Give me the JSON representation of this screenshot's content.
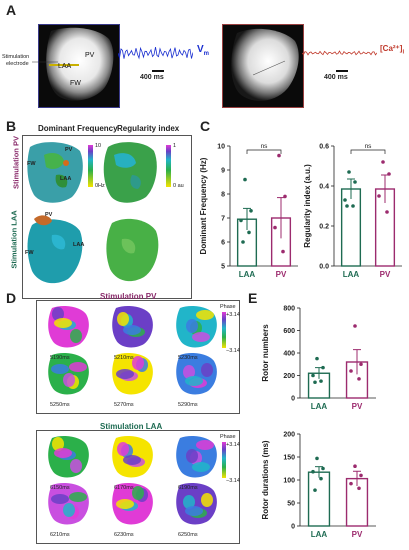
{
  "panels": {
    "A": {
      "letter": "A",
      "labels": {
        "pv": "PV",
        "laa": "LAA",
        "fw": "FW",
        "stim_line1": "Stimulation",
        "stim_line2": "electrode"
      },
      "trace_vm": {
        "label": "V",
        "label_sub": "m",
        "scale": "400 ms",
        "color": "#1a2fd0"
      },
      "trace_ca": {
        "label": "[Ca²⁺]",
        "label_sub": "i",
        "scale": "400 ms",
        "color": "#c0392b"
      }
    },
    "B": {
      "letter": "B",
      "col1": "Dominant Frequency",
      "col2": "Regularity index",
      "row1": "Stimulation PV",
      "row2": "Stimulation LAA",
      "df_scale": {
        "max": "10",
        "min": "0Hz"
      },
      "ri_scale": {
        "max": "1",
        "min": "0 au"
      },
      "labels": {
        "pv": "PV",
        "laa": "LAA",
        "fw": "FW"
      }
    },
    "C": {
      "letter": "C",
      "colors": {
        "laa": "#1e6b52",
        "pv": "#9c2b6e"
      },
      "ns": "ns"
    },
    "D": {
      "letter": "D",
      "group1": {
        "title": "Stimulation PV",
        "times": [
          "5190ms",
          "5210ms",
          "5230ms",
          "5250ms",
          "5270ms",
          "5290ms"
        ],
        "title_color": "#8a2b6b"
      },
      "group2": {
        "title": "Stimulation LAA",
        "times": [
          "6150ms",
          "6170ms",
          "6190ms",
          "6210ms",
          "6230ms",
          "6250ms"
        ],
        "title_color": "#1e6b52"
      },
      "phase": {
        "label": "Phase",
        "max": "+3.14",
        "min": "−3.14"
      }
    },
    "E": {
      "letter": "E"
    }
  },
  "chart_data": [
    {
      "type": "bar",
      "panel": "C-left",
      "categories": [
        "LAA",
        "PV"
      ],
      "values": [
        6.95,
        7.0
      ],
      "errors": [
        0.45,
        0.85
      ],
      "points": [
        [
          8.6,
          7.3,
          6.9,
          6.4,
          6.0
        ],
        [
          9.6,
          7.9,
          6.6,
          5.6
        ]
      ],
      "ylabel": "Dominant Frequency (Hz)",
      "ylim": [
        5,
        10
      ],
      "yticks": [
        5,
        6,
        7,
        8,
        9,
        10
      ]
    },
    {
      "type": "bar",
      "panel": "C-right",
      "categories": [
        "LAA",
        "PV"
      ],
      "values": [
        0.385,
        0.385
      ],
      "errors": [
        0.05,
        0.07
      ],
      "points": [
        [
          0.47,
          0.42,
          0.33,
          0.3,
          0.3
        ],
        [
          0.52,
          0.46,
          0.35,
          0.27
        ]
      ],
      "ylabel": "Regularity index (a.u.)",
      "ylim": [
        0,
        0.6
      ],
      "yticks": [
        0.0,
        0.2,
        0.4,
        0.6
      ]
    },
    {
      "type": "bar",
      "panel": "E-top",
      "categories": [
        "LAA",
        "PV"
      ],
      "values": [
        220,
        320
      ],
      "errors": [
        50,
        110
      ],
      "points": [
        [
          350,
          270,
          200,
          150,
          140
        ],
        [
          640,
          300,
          240,
          170
        ]
      ],
      "ylabel": "Rotor numbers",
      "ylim": [
        0,
        800
      ],
      "yticks": [
        0,
        200,
        400,
        600,
        800
      ]
    },
    {
      "type": "bar",
      "panel": "E-bottom",
      "categories": [
        "LAA",
        "PV"
      ],
      "values": [
        117,
        103
      ],
      "errors": [
        12,
        16
      ],
      "points": [
        [
          147,
          125,
          118,
          103,
          78
        ],
        [
          130,
          110,
          92,
          82
        ]
      ],
      "ylabel": "Rotor durations (ms)",
      "ylim": [
        0,
        200
      ],
      "yticks": [
        0,
        50,
        100,
        150,
        200
      ]
    }
  ]
}
